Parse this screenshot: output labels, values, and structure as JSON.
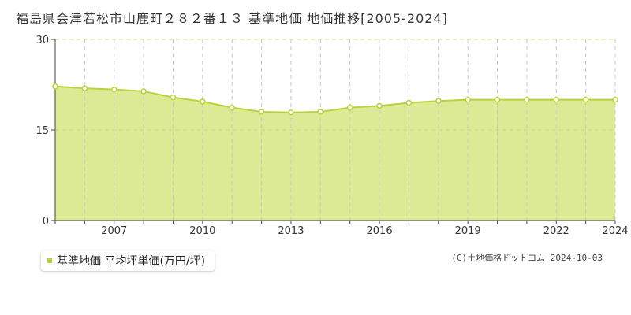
{
  "title": "福島県会津若松市山鹿町２８２番１３ 基準地価 地価推移[2005-2024]",
  "legend": {
    "label": "基準地価 平均坪単価(万円/坪)"
  },
  "copyright": "(C)土地価格ドットコム 2024-10-03",
  "colors": {
    "area_fill": "#dcea96",
    "line": "#b6d43b",
    "marker_fill": "#ffffff",
    "grid_dashed": "#c8c8c8",
    "ref_line": "#c5de7c"
  },
  "chart_data": {
    "type": "area",
    "x": [
      2005,
      2006,
      2007,
      2008,
      2009,
      2010,
      2011,
      2012,
      2013,
      2014,
      2015,
      2016,
      2017,
      2018,
      2019,
      2020,
      2021,
      2022,
      2023,
      2024
    ],
    "values": [
      22.2,
      21.9,
      21.7,
      21.4,
      20.4,
      19.7,
      18.7,
      18.0,
      17.9,
      18.0,
      18.7,
      19.0,
      19.5,
      19.8,
      20.0,
      20.0,
      20.0,
      20.0,
      20.0,
      20.0
    ],
    "ylim": [
      0,
      30
    ],
    "y_ticks": [
      "0",
      "15",
      "30"
    ],
    "x_tick_labels": [
      "2007",
      "2010",
      "2013",
      "2016",
      "2019",
      "2022",
      "2024"
    ],
    "x_tick_values": [
      2007,
      2010,
      2013,
      2016,
      2019,
      2022,
      2024
    ],
    "xlabel": "",
    "ylabel": "",
    "grid": true
  }
}
